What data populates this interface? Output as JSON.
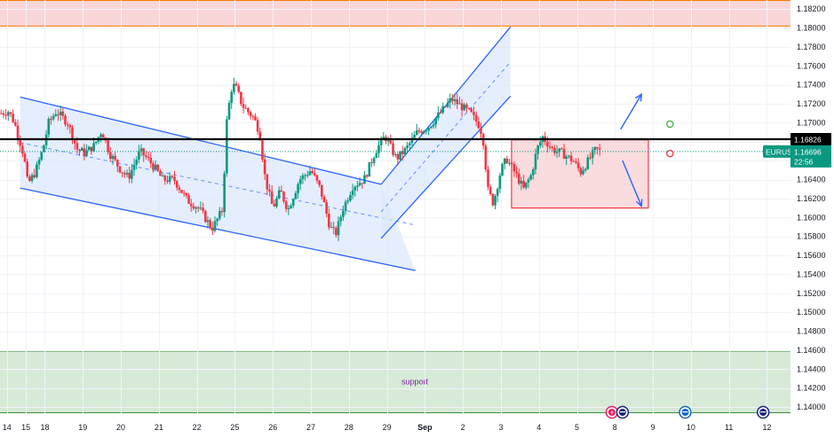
{
  "chart_data": {
    "type": "candlestick",
    "symbol": "EURUSD",
    "y_axis": {
      "range": [
        1.13935,
        1.18295
      ],
      "ticks": [
        "1.18200",
        "1.18000",
        "1.17800",
        "1.17600",
        "1.17400",
        "1.17200",
        "1.17000",
        "1.16800",
        "1.16600",
        "1.16400",
        "1.16200",
        "1.16000",
        "1.15800",
        "1.15600",
        "1.15400",
        "1.15200",
        "1.15000",
        "1.14800",
        "1.14600",
        "1.14400",
        "1.14200",
        "1.14000"
      ]
    },
    "x_axis": {
      "labels": [
        "14",
        "15",
        "18",
        "19",
        "20",
        "21",
        "22",
        "25",
        "26",
        "27",
        "28",
        "29",
        "Sep",
        "2",
        "3",
        "4",
        "5",
        "8",
        "9",
        "10",
        "11",
        "12"
      ],
      "label_positions": [
        0.0,
        0.5,
        1.0,
        2.0,
        3.0,
        4.0,
        5.0,
        6.0,
        7.0,
        8.0,
        9.0,
        10.0,
        11.0,
        12.0,
        13.0,
        14.0,
        15.0,
        16.0,
        17.0,
        18.0,
        19.0,
        20.0
      ],
      "range": [
        -0.18,
        20.62
      ]
    },
    "price_lines": [
      {
        "name": "resistance",
        "price": 1.16826,
        "label": "1.16826",
        "color": "#000000"
      },
      {
        "name": "current",
        "price": 1.16696,
        "label": "1.16696",
        "symbol_label": "EURUSD",
        "countdown": "22:56",
        "color": "#089981"
      }
    ],
    "zones": [
      {
        "name": "resistance-zone",
        "from": 1.18015,
        "to": 1.18295,
        "fill": "#f9d6d8",
        "border": "#f57c00",
        "label": ""
      },
      {
        "name": "support-zone",
        "from": 1.13935,
        "to": 1.14595,
        "fill": "#d7ead7",
        "border": "#388e3c",
        "label": "support"
      }
    ],
    "candles": {
      "up_color": "#089981",
      "down_color": "#f23645",
      "anchors": [
        [
          -0.15,
          1.171
        ],
        [
          0.05,
          1.1712
        ],
        [
          0.2,
          1.17
        ],
        [
          0.45,
          1.1665
        ],
        [
          0.55,
          1.1635
        ],
        [
          0.75,
          1.1648
        ],
        [
          0.95,
          1.1672
        ],
        [
          1.1,
          1.17
        ],
        [
          1.3,
          1.1712
        ],
        [
          1.6,
          1.17
        ],
        [
          1.85,
          1.1672
        ],
        [
          2.05,
          1.1668
        ],
        [
          2.3,
          1.1676
        ],
        [
          2.5,
          1.1692
        ],
        [
          2.7,
          1.1668
        ],
        [
          3.0,
          1.165
        ],
        [
          3.2,
          1.1642
        ],
        [
          3.5,
          1.167
        ],
        [
          3.7,
          1.1662
        ],
        [
          3.9,
          1.1652
        ],
        [
          4.1,
          1.164
        ],
        [
          4.4,
          1.164
        ],
        [
          4.75,
          1.1618
        ],
        [
          5.05,
          1.161
        ],
        [
          5.4,
          1.1588
        ],
        [
          5.7,
          1.161
        ],
        [
          5.75,
          1.169
        ],
        [
          5.9,
          1.1735
        ],
        [
          6.0,
          1.174
        ],
        [
          6.2,
          1.1718
        ],
        [
          6.5,
          1.1705
        ],
        [
          6.65,
          1.169
        ],
        [
          6.8,
          1.164
        ],
        [
          7.0,
          1.161
        ],
        [
          7.2,
          1.1628
        ],
        [
          7.4,
          1.1608
        ],
        [
          7.7,
          1.164
        ],
        [
          8.0,
          1.165
        ],
        [
          8.25,
          1.163
        ],
        [
          8.5,
          1.159
        ],
        [
          8.65,
          1.1582
        ],
        [
          8.85,
          1.161
        ],
        [
          9.1,
          1.1633
        ],
        [
          9.4,
          1.164
        ],
        [
          9.7,
          1.167
        ],
        [
          9.95,
          1.1686
        ],
        [
          10.25,
          1.1662
        ],
        [
          10.5,
          1.1672
        ],
        [
          10.8,
          1.169
        ],
        [
          11.1,
          1.1696
        ],
        [
          11.4,
          1.171
        ],
        [
          11.7,
          1.1725
        ],
        [
          12.0,
          1.1716
        ],
        [
          12.2,
          1.171
        ],
        [
          12.45,
          1.1696
        ],
        [
          12.55,
          1.1678
        ],
        [
          12.65,
          1.163
        ],
        [
          12.8,
          1.1615
        ],
        [
          13.0,
          1.165
        ],
        [
          13.15,
          1.1662
        ],
        [
          13.4,
          1.1645
        ],
        [
          13.6,
          1.163
        ],
        [
          13.8,
          1.1645
        ],
        [
          13.95,
          1.1672
        ],
        [
          14.1,
          1.1685
        ],
        [
          14.35,
          1.1672
        ],
        [
          14.6,
          1.1668
        ],
        [
          14.9,
          1.166
        ],
        [
          15.1,
          1.1648
        ],
        [
          15.3,
          1.166
        ],
        [
          15.5,
          1.1672
        ],
        [
          15.6,
          1.167
        ]
      ]
    },
    "drawings": [
      {
        "name": "descending-channel",
        "top": [
          [
            0.35,
            1.1727
          ],
          [
            9.85,
            1.1635
          ]
        ],
        "bottom": [
          [
            0.35,
            1.1631
          ],
          [
            10.75,
            1.1544
          ]
        ],
        "mid": [
          [
            0.35,
            1.1679
          ],
          [
            10.75,
            1.1592
          ]
        ],
        "fill": "#dce8fb",
        "stroke": "#2962ff"
      },
      {
        "name": "ascending-channel",
        "top": [
          [
            9.85,
            1.1635
          ],
          [
            13.25,
            1.1801
          ]
        ],
        "bottom": [
          [
            9.85,
            1.1578
          ],
          [
            13.25,
            1.1728
          ]
        ],
        "mid": [
          [
            9.85,
            1.1606
          ],
          [
            13.25,
            1.1764
          ]
        ],
        "fill": "#dce8fb",
        "stroke": "#2962ff"
      },
      {
        "name": "consolidation-box",
        "from": [
          13.28,
          1.1682
        ],
        "to": [
          16.88,
          1.161
        ],
        "fill": "#f9d6d8",
        "stroke": "#f23645"
      }
    ],
    "arrows": [
      {
        "name": "bullish-arrow",
        "from": [
          16.15,
          1.1693
        ],
        "to": [
          16.7,
          1.173
        ]
      },
      {
        "name": "bearish-arrow",
        "from": [
          16.2,
          1.166
        ],
        "to": [
          16.7,
          1.1612
        ]
      }
    ],
    "markers": [
      {
        "name": "green-marker",
        "x": 17.45,
        "y": 1.16985,
        "color": "#4caf50"
      },
      {
        "name": "red-marker",
        "x": 17.45,
        "y": 1.16675,
        "color": "#f23645"
      }
    ],
    "events": [
      {
        "name": "event-flash",
        "x": 15.92,
        "color": "#e91e63",
        "glyph": "⚡"
      },
      {
        "name": "event-us-1",
        "x": 16.2,
        "color": "#1a237e",
        "glyph": "US"
      },
      {
        "name": "event-eu",
        "x": 17.85,
        "color": "#1565c0",
        "glyph": "EU"
      },
      {
        "name": "event-us-2",
        "x": 19.9,
        "color": "#1a237e",
        "glyph": "US"
      }
    ]
  }
}
